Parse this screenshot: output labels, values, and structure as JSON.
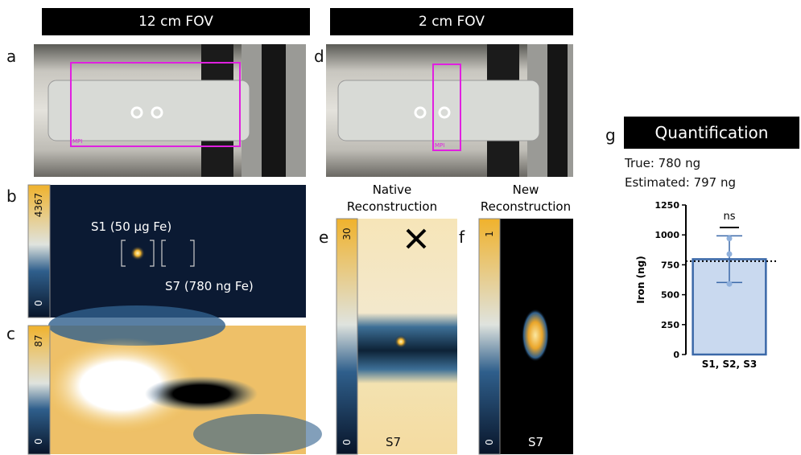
{
  "headers": [
    "12 cm FOV",
    "2 cm FOV"
  ],
  "panel_labels": [
    "a",
    "b",
    "c",
    "d",
    "e",
    "f",
    "g"
  ],
  "photo_labels": [
    "MPI",
    "MPI"
  ],
  "panel_b": {
    "colorbar": [
      "4367",
      "0"
    ],
    "annotations": [
      "S1 (50 µg Fe)",
      "S7 (780 ng Fe)"
    ]
  },
  "panel_c": {
    "colorbar": [
      "87",
      "0"
    ]
  },
  "panel_e": {
    "title": "Native Reconstruction",
    "colorbar": [
      "30",
      "0"
    ],
    "sample": "S7"
  },
  "panel_f": {
    "title": "New Reconstruction",
    "colorbar": [
      "1",
      "0"
    ],
    "sample": "S7"
  },
  "panel_g": {
    "title": "Quantification",
    "true": "True: 780 ng",
    "estimated": "Estimated: 797 ng",
    "chart_data": {
      "type": "bar",
      "ylabel": "Iron (ng)",
      "categories": [
        "S1, S2, S3"
      ],
      "values": [
        797
      ],
      "errors": [
        195
      ],
      "points": [
        970,
        840,
        590
      ],
      "reference_line": 780,
      "annotation": "ns",
      "ylim": [
        0,
        1250
      ],
      "yticks": [
        0,
        250,
        500,
        750,
        1000,
        1250
      ],
      "color": "#c9d9ef",
      "edgecolor": "#3a68a8"
    }
  }
}
